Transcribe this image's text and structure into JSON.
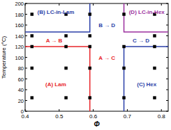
{
  "chart_data": {
    "type": "scatter",
    "x_label": "Φ",
    "y_label": "Temperature (°C)",
    "xlim": [
      0.4,
      0.82
    ],
    "ylim": [
      0,
      200
    ],
    "xticks": [
      0.4,
      0.5,
      0.6,
      0.7,
      0.8
    ],
    "yticks": [
      0,
      20,
      40,
      60,
      80,
      100,
      120,
      140,
      160,
      180,
      200
    ],
    "grid": false,
    "color": "#000000",
    "marker": "square",
    "points": {
      "x": [
        0.42,
        0.42,
        0.42,
        0.42,
        0.42,
        0.52,
        0.52,
        0.52,
        0.52,
        0.52,
        0.59,
        0.59,
        0.59,
        0.59,
        0.59,
        0.69,
        0.69,
        0.69,
        0.69,
        0.78,
        0.78,
        0.78,
        0.78,
        0.78
      ],
      "y": [
        25,
        80,
        120,
        140,
        180,
        25,
        80,
        120,
        140,
        180,
        25,
        80,
        120,
        140,
        180,
        25,
        80,
        120,
        180,
        25,
        80,
        120,
        140,
        180
      ]
    },
    "boundaries": [
      {
        "color": "#e8262b",
        "x": [
          0.4,
          0.59,
          0.59
        ],
        "y": [
          120,
          120,
          0
        ]
      },
      {
        "color": "#2b3fa8",
        "x": [
          0.4,
          0.59,
          0.59
        ],
        "y": [
          147,
          147,
          200
        ]
      },
      {
        "color": "#2b3fa8",
        "x": [
          0.69,
          0.69,
          0.82
        ],
        "y": [
          0,
          120,
          120
        ]
      },
      {
        "color": "#9b2f9e",
        "x": [
          0.69,
          0.69,
          0.82
        ],
        "y": [
          200,
          147,
          147
        ]
      }
    ],
    "annotations": [
      {
        "text": "(A) Lam",
        "x": 0.49,
        "y": 50,
        "color": "#e8262b"
      },
      {
        "text": "(B) LC-in-Lam",
        "x": 0.49,
        "y": 185,
        "color": "#2b3fa8"
      },
      {
        "text": "(C) Hex",
        "x": 0.757,
        "y": 50,
        "color": "#2b3fa8"
      },
      {
        "text": "(D) LC-in-Hex",
        "x": 0.757,
        "y": 185,
        "color": "#9b2f9e"
      },
      {
        "text": "A → B",
        "x": 0.485,
        "y": 131,
        "color": "#e8262b"
      },
      {
        "text": "B → D",
        "x": 0.64,
        "y": 160,
        "color": "#2b3fa8"
      },
      {
        "text": "A → C",
        "x": 0.64,
        "y": 100,
        "color": "#e8262b"
      },
      {
        "text": "C → D",
        "x": 0.74,
        "y": 131,
        "color": "#2b3fa8"
      }
    ]
  }
}
